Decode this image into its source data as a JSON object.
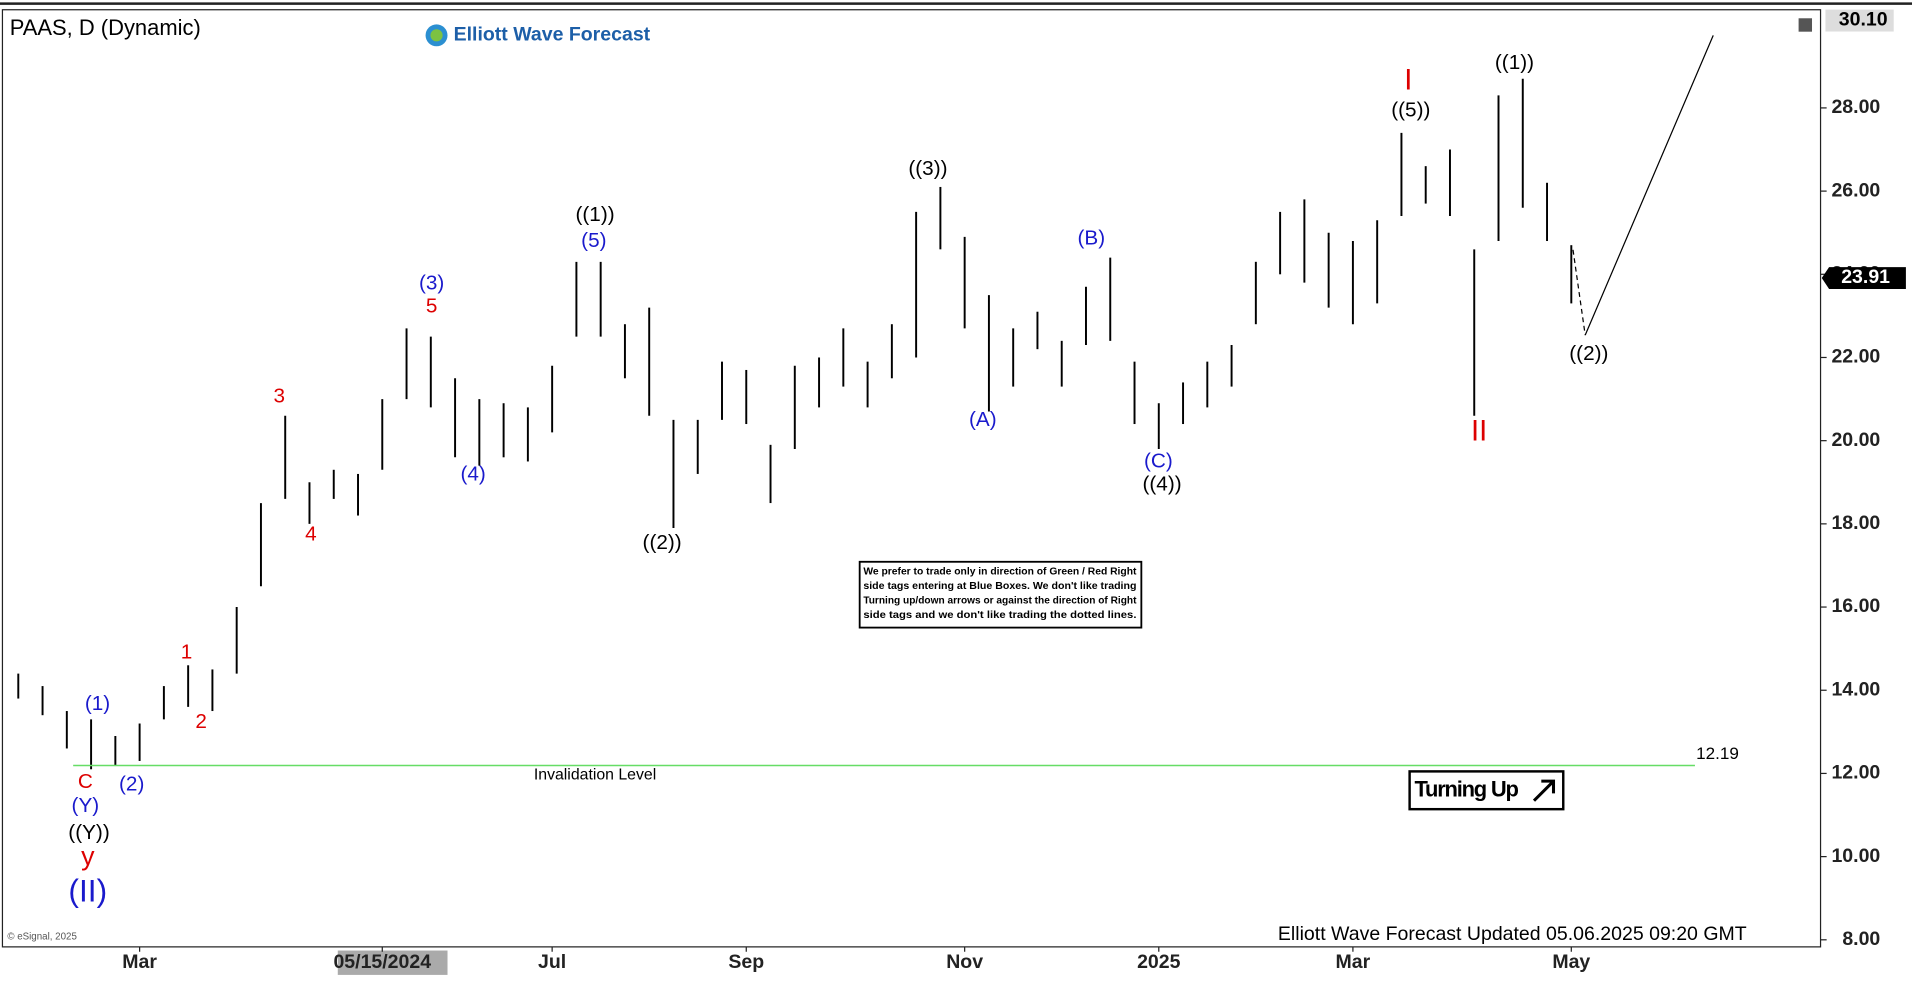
{
  "chart_data": {
    "type": "ohlc",
    "title": "PAAS, D (Dynamic)",
    "brand": "Elliott Wave Forecast",
    "categories": [
      null,
      null,
      null,
      null,
      null,
      "Mar",
      null,
      null,
      null,
      null,
      null,
      null,
      null,
      null,
      null,
      "05/15/2024",
      null,
      null,
      null,
      null,
      null,
      null,
      "Jul",
      null,
      null,
      null,
      null,
      null,
      null,
      null,
      "Sep",
      null,
      null,
      null,
      null,
      null,
      null,
      null,
      null,
      "Nov",
      null,
      null,
      null,
      null,
      null,
      null,
      null,
      "2025",
      null,
      null,
      null,
      null,
      null,
      null,
      null,
      "Mar",
      null,
      null,
      null,
      null,
      null,
      null,
      null,
      null,
      "May"
    ],
    "series": [
      {
        "name": "High",
        "color": "#000000",
        "values": [
          14.4,
          14.1,
          13.5,
          13.3,
          12.9,
          13.2,
          14.1,
          14.6,
          14.5,
          16.0,
          18.5,
          20.6,
          19.0,
          19.3,
          19.2,
          21.0,
          22.7,
          22.5,
          21.5,
          21.0,
          20.9,
          20.8,
          21.8,
          24.3,
          24.3,
          22.8,
          23.2,
          20.5,
          20.5,
          21.9,
          21.7,
          19.9,
          21.8,
          22.0,
          22.7,
          21.9,
          22.8,
          25.5,
          26.1,
          24.9,
          23.5,
          22.7,
          23.1,
          22.4,
          23.7,
          24.4,
          21.9,
          20.9,
          21.4,
          21.9,
          22.3,
          24.3,
          25.5,
          25.8,
          25.0,
          24.8,
          25.3,
          27.4,
          26.6,
          27.0,
          24.6,
          28.3,
          28.7,
          26.2,
          24.7
        ]
      },
      {
        "name": "Low",
        "color": "#000000",
        "values": [
          13.8,
          13.4,
          12.6,
          12.1,
          12.2,
          12.3,
          13.3,
          13.6,
          13.5,
          14.4,
          16.5,
          18.6,
          18.0,
          18.6,
          18.2,
          19.3,
          21.0,
          20.8,
          19.6,
          19.4,
          19.6,
          19.5,
          20.2,
          22.5,
          22.5,
          21.5,
          20.6,
          17.9,
          19.2,
          20.5,
          20.4,
          18.5,
          19.8,
          20.8,
          21.3,
          20.8,
          21.5,
          22.0,
          24.6,
          22.7,
          20.7,
          21.3,
          22.2,
          21.3,
          22.3,
          22.4,
          20.4,
          19.8,
          20.4,
          20.8,
          21.3,
          22.8,
          24.0,
          23.8,
          23.2,
          22.8,
          23.3,
          25.4,
          25.7,
          25.4,
          20.6,
          24.8,
          25.6,
          24.8,
          23.3
        ]
      }
    ],
    "ylim": [
      7.83,
      30.36
    ],
    "yticks": [
      {
        "value": 8,
        "label": "8.00"
      },
      {
        "value": 10,
        "label": "10.00"
      },
      {
        "value": 12,
        "label": "12.00"
      },
      {
        "value": 14,
        "label": "14.00"
      },
      {
        "value": 16,
        "label": "16.00"
      },
      {
        "value": 18,
        "label": "18.00"
      },
      {
        "value": 20,
        "label": "20.00"
      },
      {
        "value": 22,
        "label": "22.00"
      },
      {
        "value": 24,
        "label": "24.00"
      },
      {
        "value": 26,
        "label": "26.00"
      },
      {
        "value": 28,
        "label": "28.00"
      }
    ],
    "high_tag": {
      "value": 30.1,
      "label": "30.10"
    },
    "last_price": 23.91,
    "invalidation": {
      "value": 12.19,
      "label": "Invalidation Level",
      "color": "#66dd66"
    },
    "annotations": [
      {
        "text": "C",
        "color": "#dd0000"
      },
      {
        "text": "(Y)",
        "color": "#1a1acc"
      },
      {
        "text": "((Y))",
        "color": "#000000"
      },
      {
        "text": "y",
        "color": "#dd0000"
      },
      {
        "text": "(II)",
        "color": "#1a1acc"
      },
      {
        "text": "(1)",
        "color": "#1a1acc"
      },
      {
        "text": "(2)",
        "color": "#1a1acc"
      },
      {
        "text": "1",
        "color": "#dd0000"
      },
      {
        "text": "2",
        "color": "#dd0000"
      },
      {
        "text": "3",
        "color": "#dd0000"
      },
      {
        "text": "4",
        "color": "#dd0000"
      },
      {
        "text": "(3)",
        "color": "#1a1acc"
      },
      {
        "text": "5",
        "color": "#dd0000"
      },
      {
        "text": "(4)",
        "color": "#1a1acc"
      },
      {
        "text": "((1))",
        "color": "#000000"
      },
      {
        "text": "(5)",
        "color": "#1a1acc"
      },
      {
        "text": "((2))",
        "color": "#000000"
      },
      {
        "text": "((3))",
        "color": "#000000"
      },
      {
        "text": "(A)",
        "color": "#1a1acc"
      },
      {
        "text": "(B)",
        "color": "#1a1acc"
      },
      {
        "text": "(C)",
        "color": "#1a1acc"
      },
      {
        "text": "((4))",
        "color": "#000000"
      },
      {
        "text": "I",
        "color": "#dd0000"
      },
      {
        "text": "((5))",
        "color": "#000000"
      },
      {
        "text": "((1))",
        "color": "#000000"
      },
      {
        "text": "II",
        "color": "#dd0000"
      },
      {
        "text": "((2))",
        "color": "#000000"
      }
    ],
    "note": [
      "We prefer to trade only in direction of Green / Red Right",
      "side tags entering at Blue Boxes. We don't like trading",
      "Turning up/down arrows or against the direction of Right",
      "side tags and we don't like trading the dotted lines."
    ],
    "signal": "Turning Up",
    "footer": "Elliott Wave Forecast Updated 05.06.2025 09:20 GMT",
    "copyright": "© eSignal, 2025"
  }
}
